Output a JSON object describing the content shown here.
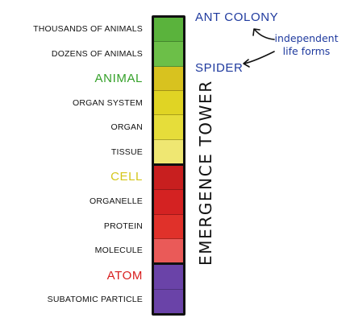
{
  "levels": [
    {
      "label": "THOUSANDS OF ANIMALS",
      "big": false,
      "color": "#5ab33c"
    },
    {
      "label": "DOZENS OF ANIMALS",
      "big": false,
      "color": "#6cbf48"
    },
    {
      "label": "ANIMAL",
      "big": true,
      "color": "#d8c21f",
      "label_color": "#35a12a"
    },
    {
      "label": "ORGAN SYSTEM",
      "big": false,
      "color": "#e0d424"
    },
    {
      "label": "ORGAN",
      "big": false,
      "color": "#e6dd3a"
    },
    {
      "label": "TISSUE",
      "big": false,
      "color": "#efe772"
    },
    {
      "label": "CELL",
      "big": true,
      "color": "#c81f1f",
      "label_color": "#d4c61a"
    },
    {
      "label": "ORGANELLE",
      "big": false,
      "color": "#d42222"
    },
    {
      "label": "PROTEIN",
      "big": false,
      "color": "#e0312a"
    },
    {
      "label": "MOLECULE",
      "big": false,
      "color": "#ea5a58"
    },
    {
      "label": "ATOM",
      "big": true,
      "color": "#6a43a8",
      "label_color": "#d81e1e"
    },
    {
      "label": "SUBATOMIC PARTICLE",
      "big": false,
      "color": "#6a43a8"
    }
  ],
  "tower_title": "EMERGENCE TOWER",
  "right_labels": {
    "ant_colony": "ANT COLONY",
    "spider": "SPIDER"
  },
  "annotation": {
    "line1": "independent",
    "line2": "life forms"
  }
}
